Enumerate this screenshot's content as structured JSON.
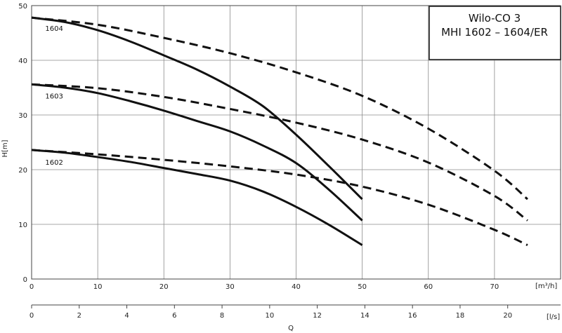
{
  "chart_data": {
    "type": "line",
    "title": [
      "Wilo-CO 3",
      "MHI 1602 – 1604/ER"
    ],
    "ylabel": "H[m]",
    "xlabel": "Q",
    "x_unit_label": "[m³/h]",
    "x2_unit_label": "[l/s]",
    "xlim": [
      0,
      80
    ],
    "ylim": [
      0,
      50
    ],
    "x_ticks": [
      0,
      10,
      20,
      30,
      40,
      50,
      60,
      70
    ],
    "y_ticks": [
      0,
      10,
      20,
      30,
      40,
      50
    ],
    "x2_ticks": [
      0,
      2,
      4,
      6,
      8,
      10,
      12,
      14,
      16,
      18,
      20
    ],
    "x2_scale_m3h_per_ls": 3.6,
    "grid": true,
    "series": [
      {
        "name": "1604",
        "style": "solid",
        "x": [
          0,
          5,
          10,
          15,
          20,
          25,
          30,
          35,
          40,
          45,
          50
        ],
        "y": [
          47.8,
          47.0,
          45.5,
          43.4,
          40.9,
          38.3,
          35.2,
          31.6,
          26.4,
          20.6,
          14.6
        ]
      },
      {
        "name": "1603",
        "style": "solid",
        "x": [
          0,
          5,
          10,
          15,
          20,
          25,
          30,
          35,
          40,
          45,
          50
        ],
        "y": [
          35.6,
          35.0,
          34.0,
          32.5,
          30.8,
          28.9,
          27.0,
          24.4,
          21.2,
          16.3,
          10.7
        ]
      },
      {
        "name": "1602",
        "style": "solid",
        "x": [
          0,
          5,
          10,
          15,
          20,
          25,
          30,
          35,
          40,
          45,
          50
        ],
        "y": [
          23.6,
          23.1,
          22.3,
          21.4,
          20.3,
          19.2,
          18.0,
          16.0,
          13.2,
          9.9,
          6.2
        ]
      },
      {
        "name": "1604",
        "style": "dashed",
        "x": [
          0,
          10,
          20,
          30,
          40,
          50,
          60,
          70,
          75
        ],
        "y": [
          47.8,
          46.5,
          44.1,
          41.3,
          37.8,
          33.5,
          27.5,
          19.8,
          14.6
        ]
      },
      {
        "name": "1603",
        "style": "dashed",
        "x": [
          0,
          10,
          20,
          30,
          40,
          50,
          60,
          70,
          75
        ],
        "y": [
          35.6,
          34.9,
          33.3,
          31.1,
          28.6,
          25.5,
          21.3,
          15.2,
          10.7
        ]
      },
      {
        "name": "1602",
        "style": "dashed",
        "x": [
          0,
          10,
          20,
          30,
          40,
          50,
          60,
          70,
          75
        ],
        "y": [
          23.6,
          22.8,
          21.8,
          20.6,
          19.1,
          16.9,
          13.6,
          9.0,
          6.2
        ]
      }
    ],
    "series_labels": [
      {
        "text": "1604",
        "x": 1,
        "y": 45.9
      },
      {
        "text": "1603",
        "x": 1,
        "y": 33.5
      },
      {
        "text": "1602",
        "x": 1,
        "y": 21.4
      }
    ]
  }
}
